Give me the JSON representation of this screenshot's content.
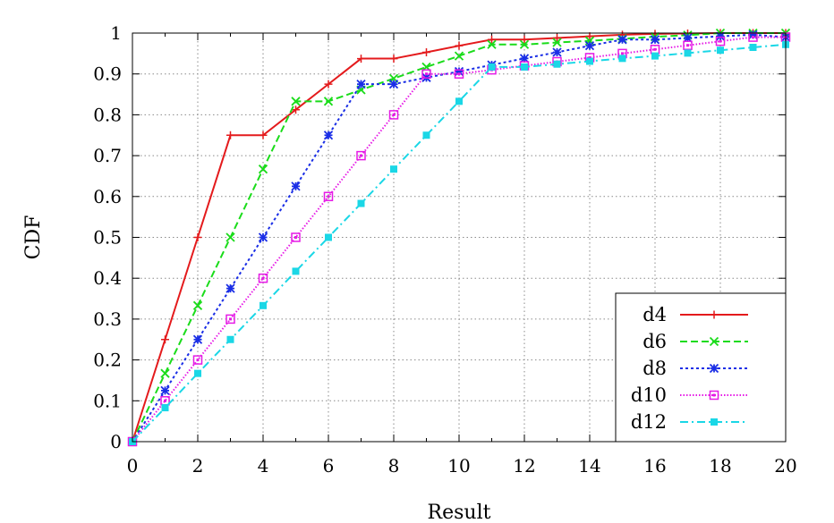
{
  "chart_data": {
    "type": "line",
    "xlabel": "Result",
    "ylabel": "CDF",
    "xlim": [
      0,
      20
    ],
    "ylim": [
      0,
      1
    ],
    "x_ticks": [
      "0",
      "2",
      "4",
      "6",
      "8",
      "10",
      "12",
      "14",
      "16",
      "18",
      "20"
    ],
    "y_ticks": [
      "0",
      "0.1",
      "0.2",
      "0.3",
      "0.4",
      "0.5",
      "0.6",
      "0.7",
      "0.8",
      "0.9",
      "1"
    ],
    "grid": true,
    "legend_position": "bottom-right",
    "series": [
      {
        "name": "d4",
        "color": "#e41a1c",
        "dash": "solid",
        "marker": "plus",
        "x": [
          0,
          1,
          2,
          3,
          4,
          5,
          6,
          7,
          8,
          9,
          10,
          11,
          12,
          13,
          14,
          15,
          16,
          17,
          18,
          19,
          20
        ],
        "y": [
          0,
          0.25,
          0.5,
          0.75,
          0.75,
          0.8125,
          0.875,
          0.9375,
          0.9375,
          0.953,
          0.969,
          0.984,
          0.984,
          0.988,
          0.992,
          0.996,
          0.998,
          0.999,
          1.0,
          1.0,
          1.0
        ]
      },
      {
        "name": "d6",
        "color": "#1adc1a",
        "dash": "dashed",
        "marker": "cross",
        "x": [
          0,
          1,
          2,
          3,
          4,
          5,
          6,
          7,
          8,
          9,
          10,
          11,
          12,
          13,
          14,
          15,
          16,
          17,
          18,
          19,
          20
        ],
        "y": [
          0,
          0.167,
          0.333,
          0.5,
          0.667,
          0.833,
          0.833,
          0.861,
          0.889,
          0.917,
          0.944,
          0.972,
          0.972,
          0.977,
          0.981,
          0.986,
          0.991,
          0.995,
          1.0,
          1.0,
          1.0
        ]
      },
      {
        "name": "d8",
        "color": "#1a2ee6",
        "dash": "dotted",
        "marker": "star",
        "x": [
          0,
          1,
          2,
          3,
          4,
          5,
          6,
          7,
          8,
          9,
          10,
          11,
          12,
          13,
          14,
          15,
          16,
          17,
          18,
          19,
          20
        ],
        "y": [
          0,
          0.125,
          0.25,
          0.375,
          0.5,
          0.625,
          0.75,
          0.875,
          0.875,
          0.891,
          0.906,
          0.922,
          0.938,
          0.953,
          0.969,
          0.984,
          0.984,
          0.988,
          0.992,
          0.996,
          0.99
        ]
      },
      {
        "name": "d10",
        "color": "#e61ae6",
        "dash": "fine-dotted",
        "marker": "square-open",
        "x": [
          0,
          1,
          2,
          3,
          4,
          5,
          6,
          7,
          8,
          9,
          10,
          11,
          12,
          13,
          14,
          15,
          16,
          17,
          18,
          19,
          20
        ],
        "y": [
          0,
          0.1,
          0.2,
          0.3,
          0.4,
          0.5,
          0.6,
          0.7,
          0.8,
          0.9,
          0.9,
          0.91,
          0.92,
          0.93,
          0.94,
          0.95,
          0.96,
          0.97,
          0.98,
          0.99,
          0.99
        ]
      },
      {
        "name": "d12",
        "color": "#1ad7e6",
        "dash": "dash-dot",
        "marker": "square-filled",
        "x": [
          0,
          1,
          2,
          3,
          4,
          5,
          6,
          7,
          8,
          9,
          10,
          11,
          12,
          13,
          14,
          15,
          16,
          17,
          18,
          19,
          20
        ],
        "y": [
          0,
          0.083,
          0.167,
          0.25,
          0.333,
          0.417,
          0.5,
          0.583,
          0.667,
          0.75,
          0.833,
          0.917,
          0.917,
          0.924,
          0.931,
          0.938,
          0.944,
          0.951,
          0.958,
          0.965,
          0.972
        ]
      }
    ]
  }
}
